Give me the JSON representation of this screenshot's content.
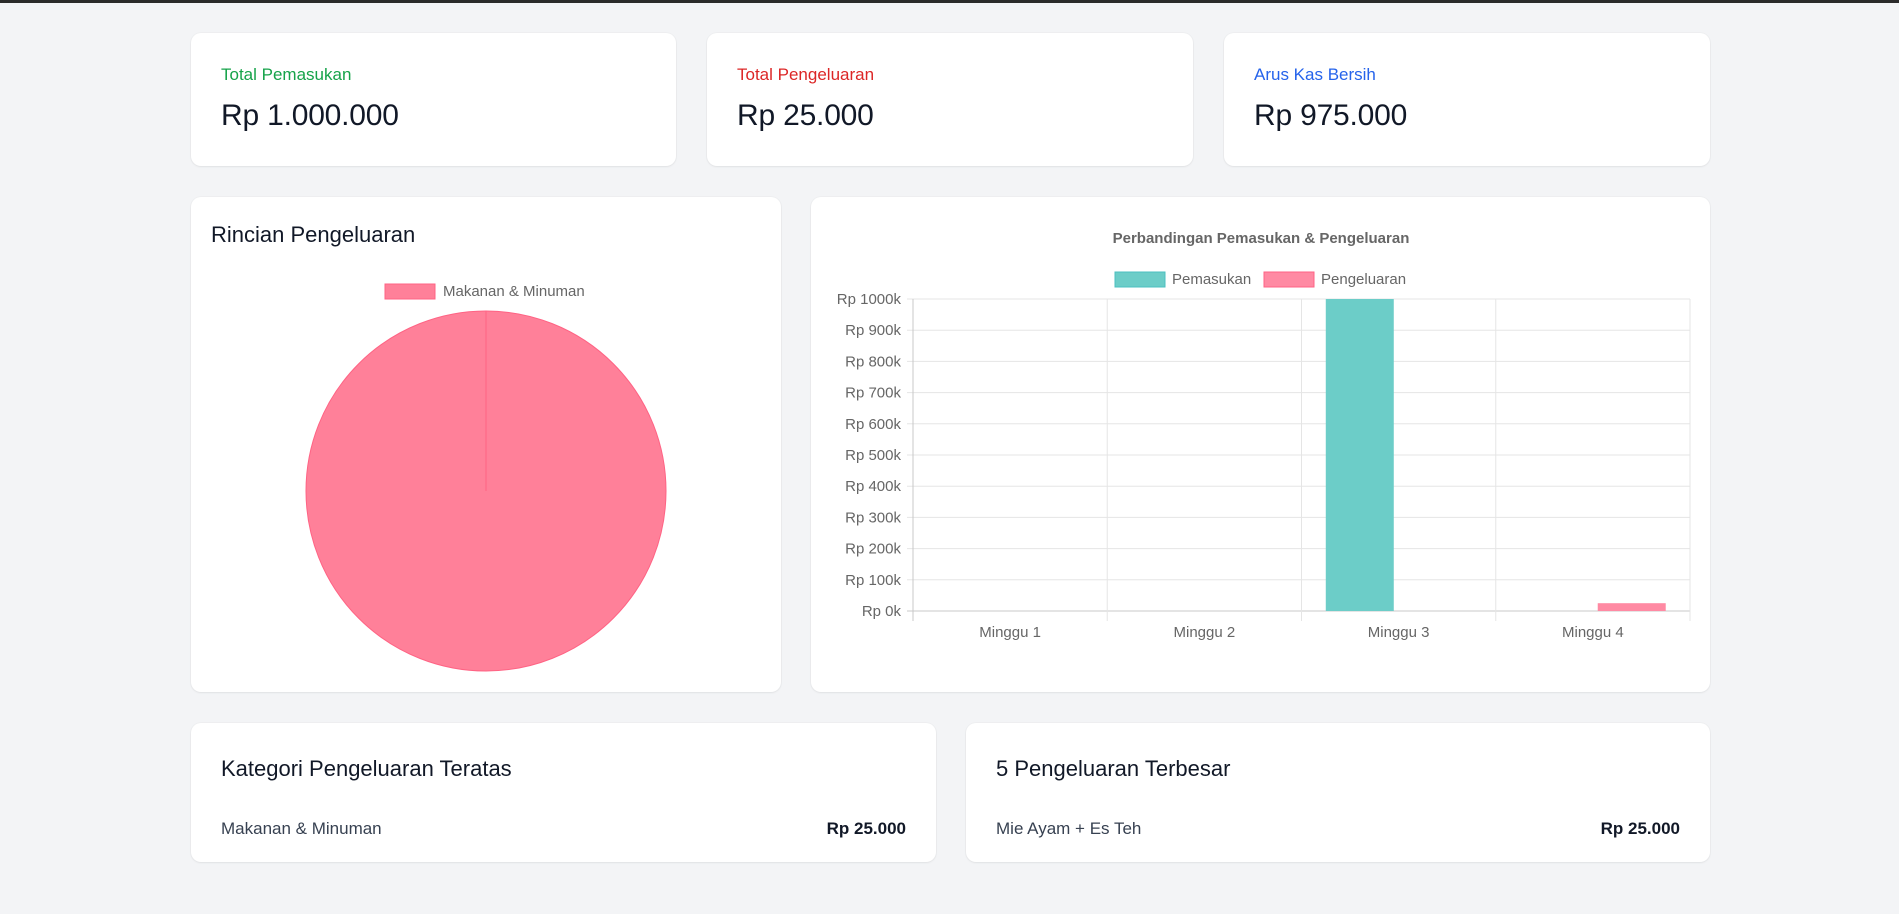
{
  "stats": [
    {
      "label": "Total Pemasukan",
      "value": "Rp 1.000.000",
      "color": "#16a34a"
    },
    {
      "label": "Total Pengeluaran",
      "value": "Rp 25.000",
      "color": "#dc2626"
    },
    {
      "label": "Arus Kas Bersih",
      "value": "Rp 975.000",
      "color": "#2563eb"
    }
  ],
  "pie_card": {
    "title": "Rincian Pengeluaran"
  },
  "bar_card": {
    "title": "Perbandingan Pemasukan & Pengeluaran"
  },
  "chart_data": [
    {
      "type": "pie",
      "title": "",
      "labels": [
        "Makanan & Minuman"
      ],
      "values": [
        25000
      ],
      "colors": [
        "#ff8099"
      ],
      "legend": "top"
    },
    {
      "type": "bar",
      "title": "Perbandingan Pemasukan & Pengeluaran",
      "categories": [
        "Minggu 1",
        "Minggu 2",
        "Minggu 3",
        "Minggu 4"
      ],
      "series": [
        {
          "name": "Pemasukan",
          "values": [
            0,
            0,
            1000000,
            0
          ],
          "color": "#6ccdc8"
        },
        {
          "name": "Pengeluaran",
          "values": [
            0,
            0,
            0,
            25000
          ],
          "color": "#ff8aa3"
        }
      ],
      "yticks": [
        "Rp 0k",
        "Rp 100k",
        "Rp 200k",
        "Rp 300k",
        "Rp 400k",
        "Rp 500k",
        "Rp 600k",
        "Rp 700k",
        "Rp 800k",
        "Rp 900k",
        "Rp 1000k"
      ],
      "ylim": [
        0,
        1000000
      ],
      "grid": true,
      "legend": "top"
    }
  ],
  "top_categories": {
    "title": "Kategori Pengeluaran Teratas",
    "items": [
      {
        "name": "Makanan & Minuman",
        "amount": "Rp 25.000"
      }
    ]
  },
  "top_expenses": {
    "title": "5 Pengeluaran Terbesar",
    "items": [
      {
        "name": "Mie Ayam + Es Teh",
        "amount": "Rp 25.000"
      }
    ]
  }
}
